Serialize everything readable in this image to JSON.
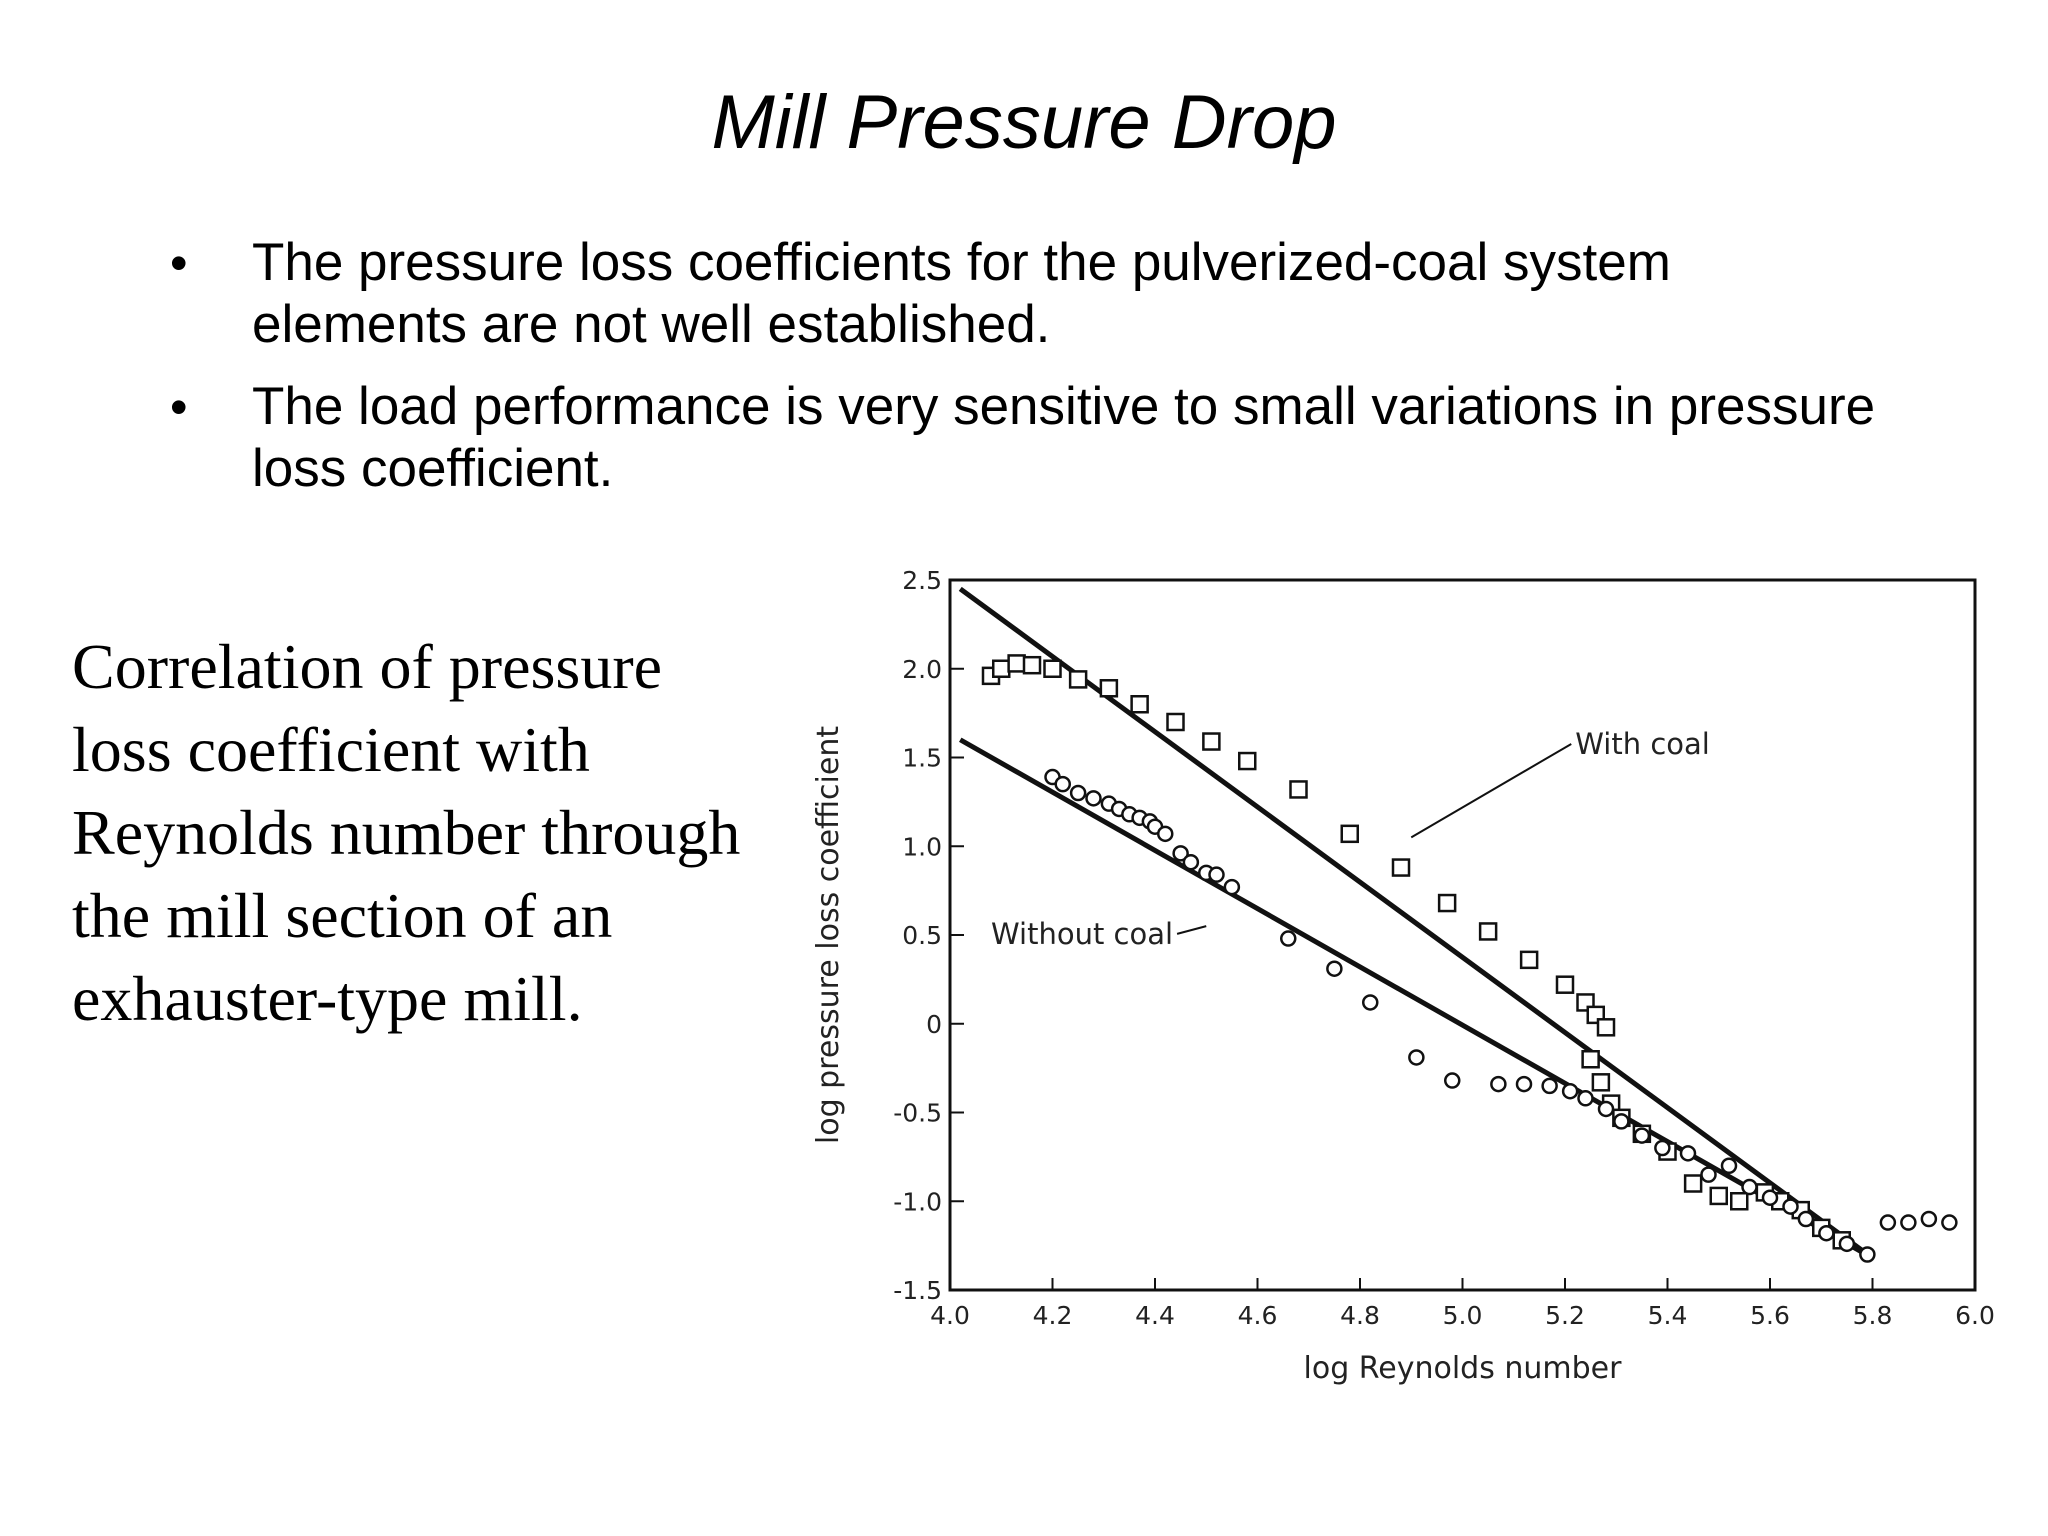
{
  "slide": {
    "title": "Mill Pressure Drop",
    "bullets": [
      "The pressure loss coefficients for the pulverized-coal system elements are not well established.",
      "The load performance is very sensitive to small variations in pressure loss coefficient."
    ],
    "bullet_marker": "•",
    "caption": "Correlation of pressure loss coefficient with Reynolds number through the mill section of an exhauster-type mill."
  },
  "chart_data": {
    "type": "scatter",
    "xlabel": "log Reynolds number",
    "ylabel": "log pressure loss coefficient",
    "xlim": [
      4.0,
      6.0
    ],
    "ylim": [
      -1.5,
      2.5
    ],
    "xticks": [
      "4.0",
      "4.2",
      "4.4",
      "4.6",
      "4.8",
      "5.0",
      "5.2",
      "5.4",
      "5.6",
      "5.8",
      "6.0"
    ],
    "yticks": [
      "2.5",
      "2.0",
      "1.5",
      "1.0",
      "0.5",
      "0",
      "-0.5",
      "-1.0",
      "-1.5"
    ],
    "grid": false,
    "series": [
      {
        "name": "With coal",
        "marker": "square",
        "points": [
          [
            4.08,
            1.96
          ],
          [
            4.1,
            2.0
          ],
          [
            4.13,
            2.03
          ],
          [
            4.16,
            2.02
          ],
          [
            4.2,
            2.0
          ],
          [
            4.25,
            1.94
          ],
          [
            4.31,
            1.89
          ],
          [
            4.37,
            1.8
          ],
          [
            4.44,
            1.7
          ],
          [
            4.51,
            1.59
          ],
          [
            4.58,
            1.48
          ],
          [
            4.68,
            1.32
          ],
          [
            4.78,
            1.07
          ],
          [
            4.88,
            0.88
          ],
          [
            4.97,
            0.68
          ],
          [
            5.05,
            0.52
          ],
          [
            5.13,
            0.36
          ],
          [
            5.2,
            0.22
          ],
          [
            5.24,
            0.12
          ],
          [
            5.26,
            0.05
          ],
          [
            5.28,
            -0.02
          ],
          [
            5.25,
            -0.2
          ],
          [
            5.27,
            -0.33
          ],
          [
            5.29,
            -0.45
          ],
          [
            5.31,
            -0.53
          ],
          [
            5.35,
            -0.62
          ],
          [
            5.4,
            -0.72
          ],
          [
            5.45,
            -0.9
          ],
          [
            5.5,
            -0.97
          ],
          [
            5.54,
            -1.0
          ],
          [
            5.59,
            -0.95
          ],
          [
            5.62,
            -1.0
          ],
          [
            5.66,
            -1.05
          ],
          [
            5.7,
            -1.15
          ],
          [
            5.74,
            -1.22
          ]
        ]
      },
      {
        "name": "Without coal",
        "marker": "circle",
        "points": [
          [
            4.2,
            1.39
          ],
          [
            4.22,
            1.35
          ],
          [
            4.25,
            1.3
          ],
          [
            4.28,
            1.27
          ],
          [
            4.31,
            1.24
          ],
          [
            4.33,
            1.21
          ],
          [
            4.35,
            1.18
          ],
          [
            4.37,
            1.16
          ],
          [
            4.39,
            1.14
          ],
          [
            4.4,
            1.11
          ],
          [
            4.42,
            1.07
          ],
          [
            4.45,
            0.96
          ],
          [
            4.47,
            0.91
          ],
          [
            4.5,
            0.85
          ],
          [
            4.52,
            0.84
          ],
          [
            4.55,
            0.77
          ],
          [
            4.66,
            0.48
          ],
          [
            4.75,
            0.31
          ],
          [
            4.82,
            0.12
          ],
          [
            4.91,
            -0.19
          ],
          [
            4.98,
            -0.32
          ],
          [
            5.07,
            -0.34
          ],
          [
            5.12,
            -0.34
          ],
          [
            5.17,
            -0.35
          ],
          [
            5.21,
            -0.38
          ],
          [
            5.24,
            -0.42
          ],
          [
            5.28,
            -0.48
          ],
          [
            5.31,
            -0.55
          ],
          [
            5.35,
            -0.63
          ],
          [
            5.39,
            -0.7
          ],
          [
            5.44,
            -0.73
          ],
          [
            5.48,
            -0.85
          ],
          [
            5.52,
            -0.8
          ],
          [
            5.56,
            -0.92
          ],
          [
            5.6,
            -0.98
          ],
          [
            5.64,
            -1.03
          ],
          [
            5.67,
            -1.1
          ],
          [
            5.71,
            -1.18
          ],
          [
            5.75,
            -1.24
          ],
          [
            5.79,
            -1.3
          ],
          [
            5.83,
            -1.12
          ],
          [
            5.87,
            -1.12
          ],
          [
            5.91,
            -1.1
          ],
          [
            5.95,
            -1.12
          ]
        ]
      }
    ],
    "lines": [
      {
        "name": "With coal",
        "from": [
          4.02,
          2.45
        ],
        "to": [
          5.8,
          -1.32
        ]
      },
      {
        "name": "Without coal",
        "from": [
          4.02,
          1.6
        ],
        "to": [
          5.8,
          -1.32
        ]
      }
    ],
    "annotations": [
      {
        "text": "With coal",
        "label_at": [
          5.22,
          1.52
        ],
        "leader_to": [
          4.9,
          1.05
        ]
      },
      {
        "text": "Without coal",
        "label_at": [
          4.08,
          0.45
        ],
        "leader_to": [
          4.5,
          0.55
        ]
      }
    ]
  }
}
